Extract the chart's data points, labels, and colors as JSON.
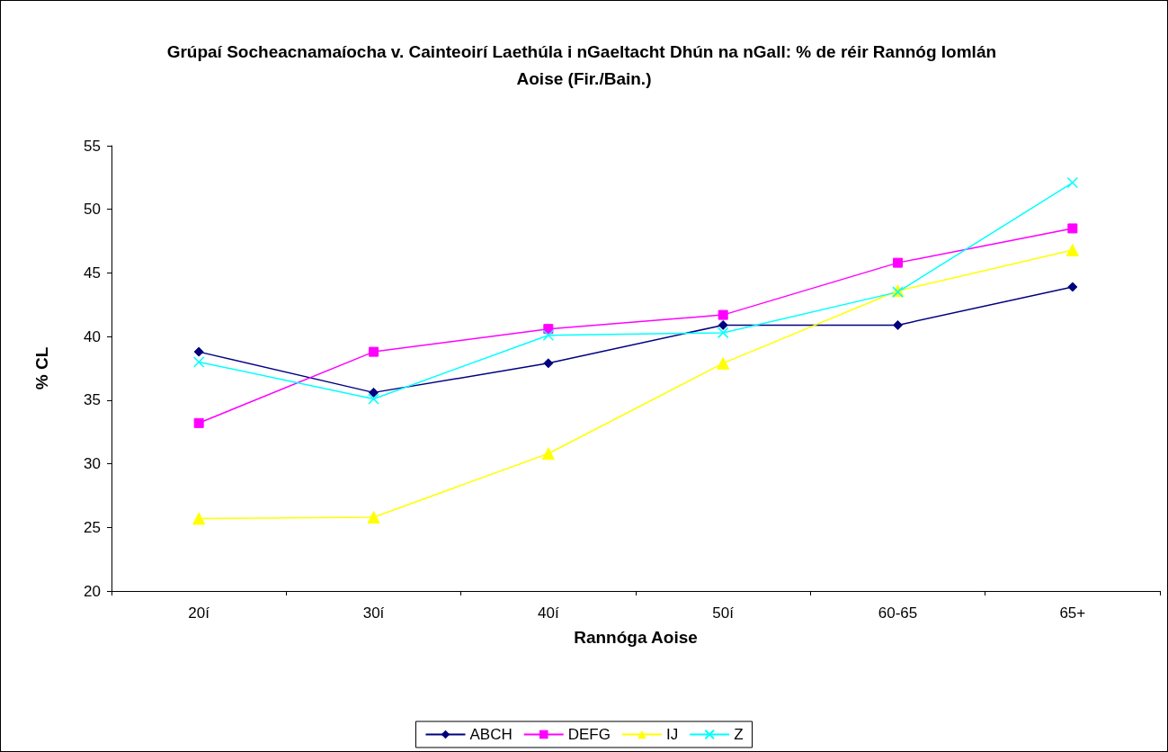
{
  "chart_data": {
    "type": "line",
    "title": "Grúpaí Socheacnamaíocha v. Cainteoirí Laethúla i nGaeltacht Dhún na nGall: % de réir Rannóg Iomlán Aoise (Fir./Bain.)",
    "xlabel": "Rannóga Aoise",
    "ylabel": "% CL",
    "categories": [
      "20í",
      "30í",
      "40í",
      "50í",
      "60-65",
      "65+"
    ],
    "series": [
      {
        "name": "ABCH",
        "color": "#000080",
        "marker": "diamond",
        "values": [
          38.8,
          35.6,
          37.9,
          40.9,
          40.9,
          43.9
        ]
      },
      {
        "name": "DEFG",
        "color": "#ff00ff",
        "marker": "square",
        "values": [
          33.2,
          38.8,
          40.6,
          41.7,
          45.8,
          48.5
        ]
      },
      {
        "name": "IJ",
        "color": "#ffff00",
        "marker": "triangle",
        "values": [
          25.7,
          25.8,
          30.8,
          37.9,
          43.6,
          46.8
        ]
      },
      {
        "name": "Z",
        "color": "#00ffff",
        "marker": "cross",
        "values": [
          38.0,
          35.1,
          40.1,
          40.3,
          43.5,
          52.1
        ]
      }
    ],
    "ylim": [
      20,
      55
    ],
    "yticks": [
      20,
      25,
      30,
      35,
      40,
      45,
      50,
      55
    ],
    "grid": false,
    "legend": "bottom"
  }
}
